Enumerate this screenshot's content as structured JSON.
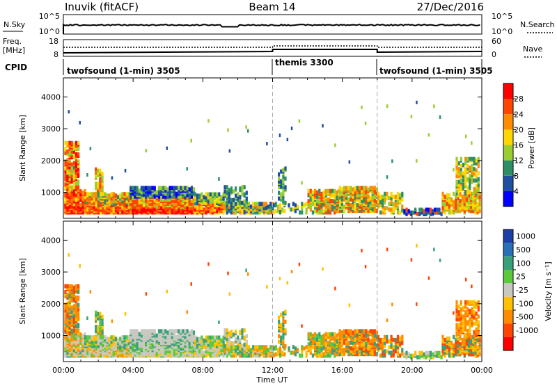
{
  "header": {
    "station": "Inuvik (fitACF)",
    "beam": "Beam 14",
    "date": "27/Dec/2016"
  },
  "nsky_panel": {
    "left_label": "N.Sky",
    "left_ticks": [
      "10^5",
      "10^0"
    ],
    "right_label": "N.Search",
    "right_ticks": [
      "10^5",
      "10^0"
    ]
  },
  "freq_panel": {
    "left_label_line1": "Freq.",
    "left_label_line2": "[MHz]",
    "left_ticks": [
      "18",
      "8"
    ],
    "right_label": "Nave",
    "right_ticks": [
      "60",
      "0"
    ]
  },
  "cpid_panel": {
    "label": "CPID",
    "segments": [
      {
        "name": "twofsound (1-min) 3505",
        "start_hour": 0
      },
      {
        "name": "themis 3300",
        "start_hour": 12
      },
      {
        "name": "twofsound (1-min) 3505",
        "start_hour": 18
      }
    ]
  },
  "chart_data": [
    {
      "type": "heatmap",
      "title": "",
      "ylabel": "Slant Range [km]",
      "xlabel": "",
      "xlim": [
        0,
        24
      ],
      "ylim": [
        180,
        4600
      ],
      "yticks": [
        1000,
        2000,
        3000,
        4000
      ],
      "colorbar": {
        "label": "Power [dB]",
        "ticks": [
          "4",
          "8",
          "12",
          "16",
          "20",
          "24",
          "28"
        ],
        "colors": [
          "#0000ff",
          "#1e4fa0",
          "#2e8f66",
          "#9acd32",
          "#ffd700",
          "#ff8c00",
          "#ff4500",
          "#ff0000"
        ]
      }
    },
    {
      "type": "heatmap",
      "title": "",
      "ylabel": "Slant Range [km]",
      "xlabel": "Time UT",
      "xlim": [
        0,
        24
      ],
      "ylim": [
        180,
        4600
      ],
      "yticks": [
        1000,
        2000,
        3000,
        4000
      ],
      "xticks": [
        "00:00",
        "04:00",
        "08:00",
        "12:00",
        "16:00",
        "20:00",
        "00:00"
      ],
      "colorbar": {
        "label": "Velocity [m s⁻¹]",
        "ticks": [
          "1000",
          "500",
          "100",
          "25",
          "-25",
          "-100",
          "-500",
          "-1000"
        ],
        "colors": [
          "#1b3fa8",
          "#2a70b8",
          "#3aa07a",
          "#5cc93a",
          "#c8c8c0",
          "#ffc000",
          "#ff8c00",
          "#ff4500",
          "#ff0000"
        ]
      }
    }
  ]
}
